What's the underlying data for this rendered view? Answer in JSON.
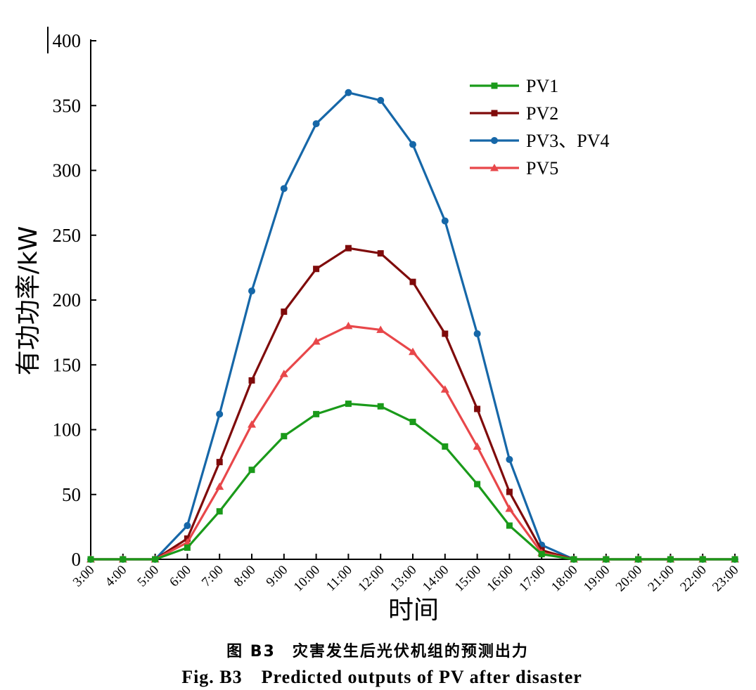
{
  "chart_data": {
    "type": "line",
    "xlabel": "时间",
    "ylabel": "有功功率/kW",
    "ylim": [
      0,
      400
    ],
    "yticks": [
      0,
      50,
      100,
      150,
      200,
      250,
      300,
      350,
      400
    ],
    "categories": [
      "3:00",
      "4:00",
      "5:00",
      "6:00",
      "7:00",
      "8:00",
      "9:00",
      "10:00",
      "11:00",
      "12:00",
      "13:00",
      "14:00",
      "15:00",
      "16:00",
      "17:00",
      "18:00",
      "19:00",
      "20:00",
      "21:00",
      "22:00",
      "23:00"
    ],
    "legend_position": "top-right",
    "grid": false,
    "series": [
      {
        "name": "PV1",
        "color": "#1a9a1a",
        "marker": "square",
        "values": [
          0,
          0,
          0,
          9,
          37,
          69,
          95,
          112,
          120,
          118,
          106,
          87,
          58,
          26,
          4,
          0,
          0,
          0,
          0,
          0,
          0
        ]
      },
      {
        "name": "PV2",
        "color": "#7f0b0b",
        "marker": "square",
        "values": [
          0,
          0,
          0,
          16,
          75,
          138,
          191,
          224,
          240,
          236,
          214,
          174,
          116,
          52,
          7,
          0,
          0,
          0,
          0,
          0,
          0
        ]
      },
      {
        "name": "PV3、PV4",
        "color": "#1667a8",
        "marker": "circle",
        "values": [
          0,
          0,
          0,
          26,
          112,
          207,
          286,
          336,
          360,
          354,
          320,
          261,
          174,
          77,
          11,
          0,
          0,
          0,
          0,
          0,
          0
        ]
      },
      {
        "name": "PV5",
        "color": "#e8474a",
        "marker": "triangle",
        "values": [
          0,
          0,
          0,
          13,
          56,
          104,
          143,
          168,
          180,
          177,
          160,
          131,
          87,
          39,
          5,
          0,
          0,
          0,
          0,
          0,
          0
        ]
      }
    ]
  },
  "caption": {
    "cn": "图 B3　灾害发生后光伏机组的预测出力",
    "en": "Fig. B3　Predicted outputs of PV after disaster"
  }
}
